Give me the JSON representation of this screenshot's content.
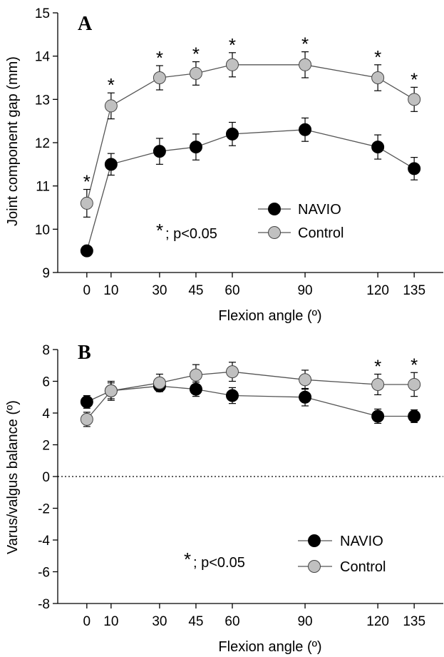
{
  "colors": {
    "navio": "#000000",
    "control": "#c0c0c0",
    "axis": "#000000",
    "series_line": "#555555"
  },
  "chart_data": [
    {
      "type": "line",
      "panel": "A",
      "xlabel": "Flexion angle (º)",
      "ylabel": "Joint component gap (mm)",
      "x": [
        0,
        10,
        30,
        45,
        60,
        90,
        120,
        135
      ],
      "x_tick_labels": [
        "0",
        "10",
        "30",
        "45",
        "60",
        "90",
        "120",
        "135"
      ],
      "xlim": [
        -12,
        147
      ],
      "ylim": [
        9,
        15
      ],
      "y_ticks": [
        9,
        10,
        11,
        12,
        13,
        14,
        15
      ],
      "y_tick_labels": [
        "9",
        "10",
        "11",
        "12",
        "13",
        "14",
        "15"
      ],
      "grid": false,
      "zero_line": false,
      "legend_position": "center-right",
      "series": [
        {
          "name": "NAVIO",
          "color_key": "navio",
          "values": [
            9.5,
            11.5,
            11.8,
            11.9,
            12.2,
            12.3,
            11.9,
            11.4
          ],
          "errors": [
            0.1,
            0.25,
            0.3,
            0.3,
            0.27,
            0.27,
            0.28,
            0.26
          ]
        },
        {
          "name": "Control",
          "color_key": "control",
          "values": [
            10.6,
            12.85,
            13.5,
            13.6,
            13.8,
            13.8,
            13.5,
            13.0
          ],
          "errors": [
            0.32,
            0.3,
            0.28,
            0.27,
            0.28,
            0.3,
            0.3,
            0.28
          ]
        }
      ],
      "significant_x": [
        0,
        10,
        30,
        45,
        60,
        90,
        120,
        135
      ],
      "significance_marker": "*",
      "significance_note": "; p<0.05"
    },
    {
      "type": "line",
      "panel": "B",
      "xlabel": "Flexion angle (º)",
      "ylabel": "Varus/valgus balance (º)",
      "x": [
        0,
        10,
        30,
        45,
        60,
        90,
        120,
        135
      ],
      "x_tick_labels": [
        "0",
        "10",
        "30",
        "45",
        "60",
        "90",
        "120",
        "135"
      ],
      "xlim": [
        -12,
        147
      ],
      "ylim": [
        -8,
        8
      ],
      "y_ticks": [
        -8,
        -6,
        -4,
        -2,
        0,
        2,
        4,
        6,
        8
      ],
      "y_tick_labels": [
        "-8",
        "-6",
        "-4",
        "-2",
        "0",
        "2",
        "4",
        "6",
        "8"
      ],
      "grid": false,
      "zero_line": true,
      "legend_position": "bottom-right",
      "series": [
        {
          "name": "NAVIO",
          "color_key": "navio",
          "values": [
            4.7,
            5.4,
            5.7,
            5.5,
            5.1,
            5.0,
            3.8,
            3.8
          ],
          "errors": [
            0.4,
            0.5,
            0.35,
            0.45,
            0.5,
            0.55,
            0.45,
            0.4
          ]
        },
        {
          "name": "Control",
          "color_key": "control",
          "values": [
            3.6,
            5.4,
            5.9,
            6.4,
            6.6,
            6.1,
            5.8,
            5.8
          ],
          "errors": [
            0.45,
            0.6,
            0.55,
            0.65,
            0.6,
            0.6,
            0.65,
            0.75
          ]
        }
      ],
      "significant_x": [
        120,
        135
      ],
      "significance_marker": "*",
      "significance_note": "; p<0.05"
    }
  ]
}
